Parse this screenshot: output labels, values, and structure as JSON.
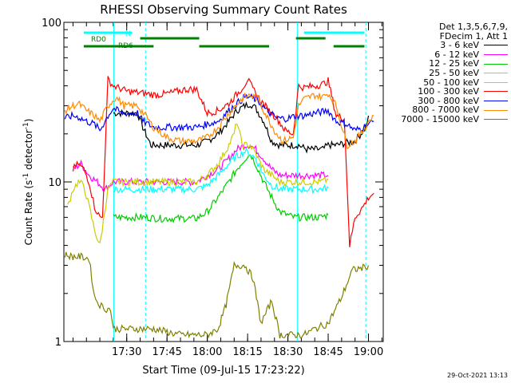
{
  "chart_data": {
    "type": "line",
    "title": "RHESSI Observing Summary Count Rates",
    "xlabel": "Start Time (09-Jul-15 17:23:22)",
    "ylabel_main": "Count Rate (s",
    "ylabel_sup1": "-1",
    "ylabel_mid": " detector",
    "ylabel_sup2": "-1",
    "ylabel_end": ")",
    "yscale": "log",
    "ylim": [
      1,
      100
    ],
    "xlim_minutes": [
      -23.4,
      95.5
    ],
    "x_ticks": [
      {
        "label": "17:30",
        "minutes": 0
      },
      {
        "label": "17:45",
        "minutes": 15
      },
      {
        "label": "18:00",
        "minutes": 30
      },
      {
        "label": "18:15",
        "minutes": 45
      },
      {
        "label": "18:30",
        "minutes": 60
      },
      {
        "label": "18:45",
        "minutes": 75
      },
      {
        "label": "19:00",
        "minutes": 90
      }
    ],
    "y_tick_labels": [
      {
        "label": "1",
        "value": 1
      },
      {
        "label": "10",
        "value": 10
      },
      {
        "label": "100",
        "value": 100
      }
    ],
    "flag_labels": {
      "n": "N",
      "rd0": "RD0",
      "rd6": "RD6"
    },
    "flags": {
      "n_color": "#00ffff",
      "rd_color": "#008000",
      "n_segments": [
        [
          -16,
          2
        ],
        [
          66,
          88.5
        ]
      ],
      "rd0_segments": [
        [
          5,
          27
        ],
        [
          63,
          74
        ]
      ],
      "rd6_segments": [
        [
          -16,
          10
        ],
        [
          27,
          53
        ],
        [
          77,
          88.5
        ]
      ]
    },
    "eclipse_lines": {
      "solid": [
        -4.8,
        63.5
      ],
      "dashed": [
        7,
        89
      ]
    },
    "legend_header": [
      "Det 1,3,5,6,7,9,",
      "FDecim 1, Att 1"
    ],
    "series": [
      {
        "name": "3 - 6 keV",
        "color": "#000000",
        "points": [
          [
            -5,
            27
          ],
          [
            4,
            27
          ],
          [
            6,
            22
          ],
          [
            9,
            17
          ],
          [
            26,
            17
          ],
          [
            30,
            18
          ],
          [
            34,
            20
          ],
          [
            38,
            24
          ],
          [
            41,
            28
          ],
          [
            44,
            30
          ],
          [
            46,
            31
          ],
          [
            48,
            29
          ],
          [
            51,
            24
          ],
          [
            54,
            18
          ],
          [
            57,
            17
          ],
          [
            64,
            17
          ],
          [
            67,
            16
          ],
          [
            73,
            16
          ],
          [
            75,
            17
          ],
          [
            78,
            17
          ],
          [
            85,
            18
          ],
          [
            89,
            22
          ],
          [
            90,
            26
          ]
        ]
      },
      {
        "name": "6 - 12 keV",
        "color": "#ff00ff",
        "points": [
          [
            -20,
            12
          ],
          [
            -17,
            13
          ],
          [
            -14,
            11
          ],
          [
            -11,
            10
          ],
          [
            -8,
            9
          ],
          [
            -5,
            10
          ],
          [
            4,
            10
          ],
          [
            7,
            10
          ],
          [
            12,
            10
          ],
          [
            14,
            10
          ],
          [
            16,
            10
          ],
          [
            26,
            10
          ],
          [
            30,
            11
          ],
          [
            34,
            12
          ],
          [
            38,
            14
          ],
          [
            41,
            16
          ],
          [
            44,
            17
          ],
          [
            46,
            17
          ],
          [
            48,
            16
          ],
          [
            51,
            14
          ],
          [
            54,
            12
          ],
          [
            57,
            11
          ],
          [
            62,
            11
          ],
          [
            63,
            11
          ],
          [
            72,
            11
          ],
          [
            75,
            11
          ]
        ]
      },
      {
        "name": "12 - 25 keV",
        "color": "#00cc00",
        "points": [
          [
            -5,
            6
          ],
          [
            7,
            6
          ],
          [
            12,
            5.9
          ],
          [
            16,
            5.9
          ],
          [
            26,
            5.9
          ],
          [
            30,
            6.5
          ],
          [
            34,
            8
          ],
          [
            38,
            10
          ],
          [
            41,
            12
          ],
          [
            44,
            14
          ],
          [
            46,
            15
          ],
          [
            48,
            13
          ],
          [
            51,
            10
          ],
          [
            54,
            8
          ],
          [
            57,
            6.5
          ],
          [
            62,
            6
          ],
          [
            63,
            6
          ],
          [
            72,
            6
          ],
          [
            75,
            6.2
          ]
        ]
      },
      {
        "name": "25 - 50 keV",
        "color": "#00ffff",
        "points": [
          [
            -5,
            9
          ],
          [
            5,
            9
          ],
          [
            12,
            9
          ],
          [
            16,
            9
          ],
          [
            26,
            9
          ],
          [
            30,
            9.5
          ],
          [
            34,
            11
          ],
          [
            38,
            13
          ],
          [
            41,
            14.5
          ],
          [
            44,
            15.5
          ],
          [
            46,
            15
          ],
          [
            48,
            14
          ],
          [
            51,
            11
          ],
          [
            54,
            9.5
          ],
          [
            57,
            9
          ],
          [
            63,
            9
          ],
          [
            72,
            9
          ],
          [
            75,
            9.2
          ]
        ]
      },
      {
        "name": "50 - 100 keV",
        "color": "#cccc00",
        "points": [
          [
            -22,
            7
          ],
          [
            -20,
            9
          ],
          [
            -18,
            10
          ],
          [
            -16,
            9.5
          ],
          [
            -14,
            7
          ],
          [
            -12,
            5
          ],
          [
            -10,
            4
          ],
          [
            -7,
            9
          ],
          [
            -5,
            10
          ],
          [
            5,
            10
          ],
          [
            12,
            10
          ],
          [
            16,
            10
          ],
          [
            26,
            10
          ],
          [
            30,
            11
          ],
          [
            34,
            13
          ],
          [
            38,
            17
          ],
          [
            40,
            20
          ],
          [
            41,
            24
          ],
          [
            43,
            17
          ],
          [
            46,
            17
          ],
          [
            48,
            15
          ],
          [
            51,
            12
          ],
          [
            54,
            11
          ],
          [
            57,
            10
          ],
          [
            63,
            10
          ],
          [
            72,
            10
          ],
          [
            75,
            10.3
          ]
        ]
      },
      {
        "name": "100 - 300 keV",
        "color": "#ff0000",
        "points": [
          [
            -20,
            12
          ],
          [
            -18,
            13
          ],
          [
            -16,
            12
          ],
          [
            -14,
            10
          ],
          [
            -12,
            7
          ],
          [
            -10,
            6
          ],
          [
            -9,
            6
          ],
          [
            -7,
            44
          ],
          [
            -5,
            40
          ],
          [
            0,
            37
          ],
          [
            6,
            36
          ],
          [
            11,
            35
          ],
          [
            16,
            36
          ],
          [
            22,
            38
          ],
          [
            26,
            38
          ],
          [
            30,
            27
          ],
          [
            34,
            28
          ],
          [
            38,
            31
          ],
          [
            42,
            37
          ],
          [
            44,
            41
          ],
          [
            45,
            44
          ],
          [
            47,
            38
          ],
          [
            50,
            32
          ],
          [
            53,
            28
          ],
          [
            56,
            25
          ],
          [
            59,
            21
          ],
          [
            62,
            20
          ],
          [
            64,
            40
          ],
          [
            66,
            39
          ],
          [
            70,
            40
          ],
          [
            73,
            41
          ],
          [
            75,
            43
          ],
          [
            78,
            26
          ],
          [
            81,
            25
          ],
          [
            83,
            4
          ],
          [
            85,
            6
          ],
          [
            88,
            7
          ],
          [
            90,
            8
          ],
          [
            92,
            8.5
          ]
        ]
      },
      {
        "name": "300 - 800 keV",
        "color": "#0000ff",
        "points": [
          [
            -23,
            25
          ],
          [
            -20,
            26
          ],
          [
            -18,
            25.5
          ],
          [
            -15,
            24
          ],
          [
            -12,
            23
          ],
          [
            -10,
            21
          ],
          [
            -7,
            26
          ],
          [
            -5,
            29
          ],
          [
            -2,
            27
          ],
          [
            4,
            27
          ],
          [
            6,
            24
          ],
          [
            10,
            22
          ],
          [
            20,
            22
          ],
          [
            26,
            22
          ],
          [
            30,
            23
          ],
          [
            34,
            24
          ],
          [
            38,
            28
          ],
          [
            42,
            32
          ],
          [
            44,
            34
          ],
          [
            46,
            34
          ],
          [
            49,
            32
          ],
          [
            52,
            28
          ],
          [
            56,
            25
          ],
          [
            60,
            25
          ],
          [
            63,
            26
          ],
          [
            66,
            26
          ],
          [
            70,
            27
          ],
          [
            73,
            27.5
          ],
          [
            75,
            28
          ],
          [
            78,
            24
          ],
          [
            82,
            23
          ],
          [
            85,
            21
          ],
          [
            88,
            22
          ],
          [
            90,
            23
          ],
          [
            92,
            24
          ]
        ]
      },
      {
        "name": "800 - 7000 keV",
        "color": "#ff8800",
        "points": [
          [
            -23,
            28
          ],
          [
            -20,
            30
          ],
          [
            -18,
            31
          ],
          [
            -15,
            28
          ],
          [
            -12,
            26
          ],
          [
            -10,
            24
          ],
          [
            -7,
            30
          ],
          [
            -4,
            34
          ],
          [
            -1,
            30
          ],
          [
            4,
            30
          ],
          [
            7,
            26
          ],
          [
            10,
            22
          ],
          [
            15,
            19
          ],
          [
            20,
            18
          ],
          [
            26,
            18
          ],
          [
            30,
            19
          ],
          [
            34,
            22
          ],
          [
            38,
            27
          ],
          [
            42,
            32
          ],
          [
            44,
            34
          ],
          [
            46,
            35
          ],
          [
            49,
            33
          ],
          [
            52,
            26
          ],
          [
            55,
            21
          ],
          [
            58,
            18
          ],
          [
            62,
            19
          ],
          [
            64,
            30
          ],
          [
            66,
            33
          ],
          [
            70,
            35
          ],
          [
            73,
            34
          ],
          [
            75,
            36
          ],
          [
            78,
            30
          ],
          [
            82,
            17
          ],
          [
            85,
            18
          ],
          [
            88,
            21
          ],
          [
            90,
            24
          ],
          [
            92,
            26
          ]
        ]
      },
      {
        "name": "7000 - 15000 keV",
        "color": "#808000",
        "points": [
          [
            -23,
            3.5
          ],
          [
            -20,
            3.4
          ],
          [
            -17,
            3.4
          ],
          [
            -14,
            3.3
          ],
          [
            -12,
            1.9
          ],
          [
            -10,
            1.7
          ],
          [
            -8,
            1.6
          ],
          [
            -6,
            1.6
          ],
          [
            -5,
            1.2
          ],
          [
            0,
            1.2
          ],
          [
            10,
            1.2
          ],
          [
            20,
            1.1
          ],
          [
            30,
            1.1
          ],
          [
            34,
            1.2
          ],
          [
            37,
            1.7
          ],
          [
            40,
            3
          ],
          [
            44,
            3
          ],
          [
            47,
            2.5
          ],
          [
            50,
            1.3
          ],
          [
            54,
            1.8
          ],
          [
            57,
            1.1
          ],
          [
            62,
            1.1
          ],
          [
            66,
            1.1
          ],
          [
            70,
            1.2
          ],
          [
            75,
            1.3
          ],
          [
            80,
            1.9
          ],
          [
            84,
            2.8
          ],
          [
            88,
            2.9
          ],
          [
            90,
            3
          ]
        ]
      }
    ]
  },
  "footer": {
    "timestamp": "29-Oct-2021 13:13"
  }
}
